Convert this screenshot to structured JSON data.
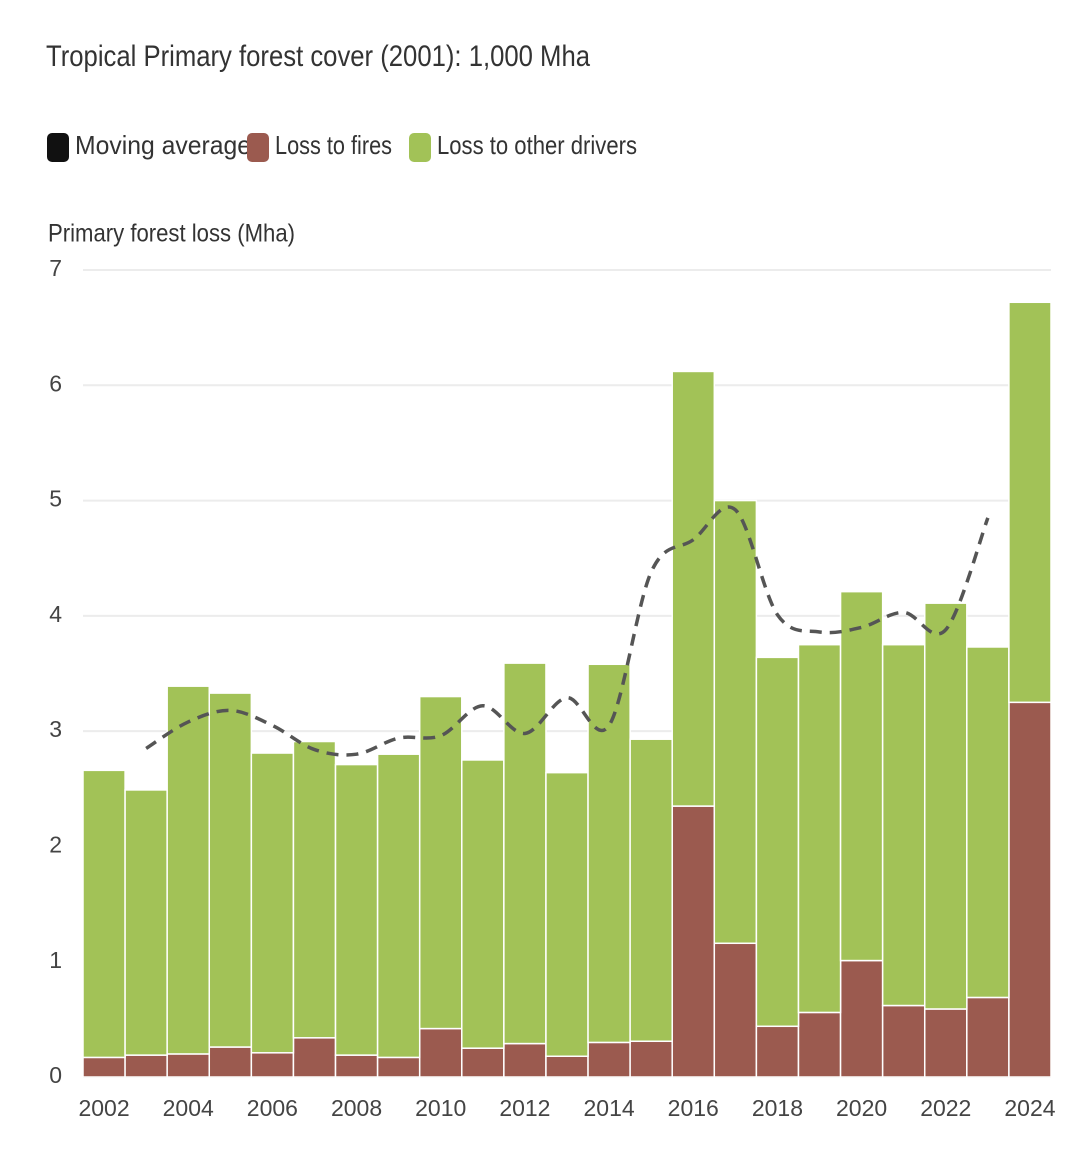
{
  "chart_data": {
    "type": "bar",
    "stacked": true,
    "title": "Tropical Primary forest cover (2001): 1,000 Mha",
    "y_label": "Primary forest loss (Mha)",
    "categories": [
      "2002",
      null,
      "2004",
      null,
      "2006",
      null,
      "2008",
      null,
      "2010",
      null,
      "2012",
      null,
      "2014",
      null,
      "2016",
      null,
      "2018",
      null,
      "2020",
      null,
      "2022",
      null,
      "2024"
    ],
    "series": [
      {
        "name": "Moving average",
        "type": "line",
        "color": "#555555",
        "dashed": true,
        "values": [
          null,
          2.85,
          3.08,
          3.18,
          3.05,
          2.84,
          2.8,
          2.94,
          2.96,
          3.22,
          2.98,
          3.29,
          3.05,
          4.38,
          4.66,
          4.92,
          4.01,
          3.86,
          3.9,
          4.03,
          3.88,
          4.85,
          null
        ]
      },
      {
        "name": "Loss to fires",
        "type": "bar",
        "color": "#9b5a4f",
        "values": [
          0.17,
          0.19,
          0.2,
          0.26,
          0.21,
          0.34,
          0.19,
          0.17,
          0.42,
          0.25,
          0.29,
          0.18,
          0.3,
          0.31,
          2.35,
          1.16,
          0.44,
          0.56,
          1.01,
          0.62,
          0.59,
          0.69,
          3.25
        ]
      },
      {
        "name": "Loss to other drivers",
        "type": "bar",
        "color": "#a2c257",
        "values": [
          2.49,
          2.3,
          3.19,
          3.07,
          2.6,
          2.57,
          2.52,
          2.63,
          2.88,
          2.5,
          3.3,
          2.46,
          3.28,
          2.62,
          3.77,
          3.84,
          3.2,
          3.19,
          3.2,
          3.13,
          3.52,
          3.04,
          3.47
        ]
      }
    ],
    "legend_marker_colors": [
      "#111111",
      "#9b5a4f",
      "#a2c257"
    ],
    "ylim": [
      0,
      7
    ],
    "yticks": [
      0,
      1,
      2,
      3,
      4,
      5,
      6,
      7
    ],
    "grid": true
  }
}
